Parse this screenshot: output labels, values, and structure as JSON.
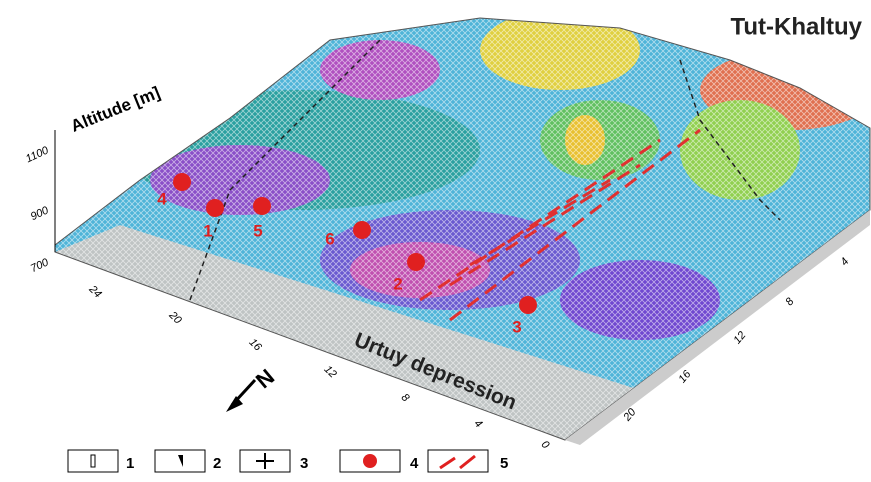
{
  "title": "Tut-Khaltuy",
  "axis_label": "Altitude [m]",
  "altitude_ticks": [
    "1100",
    "900",
    "700"
  ],
  "front_ticks": [
    "24",
    "20",
    "16",
    "12",
    "8",
    "4",
    "0"
  ],
  "side_ticks": [
    "4",
    "8",
    "12",
    "16",
    "20"
  ],
  "area_label": "Urtuy depression",
  "sites": [
    {
      "label": "4"
    },
    {
      "label": "1"
    },
    {
      "label": "5"
    },
    {
      "label": "6"
    },
    {
      "label": "2"
    },
    {
      "label": "3"
    }
  ],
  "legend": [
    {
      "label": "1"
    },
    {
      "label": "2"
    },
    {
      "label": "3"
    },
    {
      "label": "4"
    },
    {
      "label": "5"
    }
  ]
}
